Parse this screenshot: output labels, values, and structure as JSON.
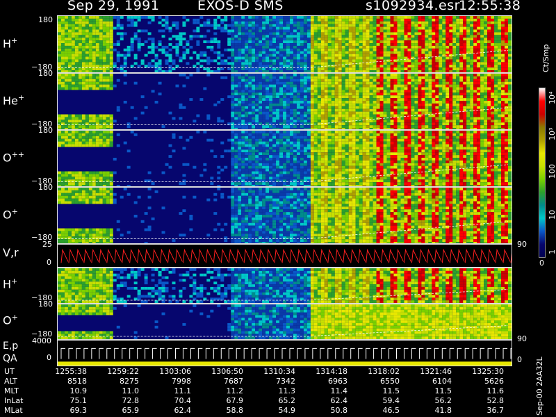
{
  "header": {
    "date": "Sep 29, 1991",
    "instrument": "EXOS-D SMS",
    "file": "s1092934.esr",
    "time": "12:55:38"
  },
  "panels": [
    {
      "id": "hplus",
      "species": "H",
      "charge": "+",
      "ymax": "180",
      "ymin": "−180"
    },
    {
      "id": "heplus",
      "species": "He",
      "charge": "+",
      "ymax": "180",
      "ymin": "−180"
    },
    {
      "id": "oplusplus",
      "species": "O",
      "charge": "++",
      "ymax": "180",
      "ymin": "−180"
    },
    {
      "id": "oplus",
      "species": "O",
      "charge": "+",
      "ymax": "180",
      "ymin": "−180"
    },
    {
      "id": "vr",
      "label": "V,r",
      "ymax": "25",
      "ymin": "0",
      "right": "90"
    },
    {
      "id": "hplus2",
      "species": "H",
      "charge": "+",
      "ymax": "180",
      "ymin": "−180"
    },
    {
      "id": "oplus2",
      "species": "O",
      "charge": "+",
      "ymax": "180",
      "ymin": "−180",
      "right": "90"
    },
    {
      "id": "ep",
      "label1": "E,p",
      "label2": "QA",
      "ymax": "4000",
      "ymin": "0",
      "right": "0"
    }
  ],
  "colorbar": {
    "units": "Ct/Smp",
    "labels": [
      "10⁴",
      "10³",
      "100",
      "10",
      "1",
      "0"
    ],
    "colors": [
      "#ffffff",
      "#ff0000",
      "#cc0000",
      "#8c7a00",
      "#b0a000",
      "#e8e800",
      "#c8e000",
      "#7ad000",
      "#2ca02c",
      "#008c8c",
      "#00c8c8",
      "#0a58c8",
      "#06066e",
      "#000050"
    ]
  },
  "ephemeris": {
    "UT": [
      "1255:38",
      "1259:22",
      "1303:06",
      "1306:50",
      "1310:34",
      "1314:18",
      "1318:02",
      "1321:46",
      "1325:30"
    ],
    "ALT": [
      "8518",
      "8275",
      "7998",
      "7687",
      "7342",
      "6963",
      "6550",
      "6104",
      "5626"
    ],
    "MLT": [
      "10.9",
      "11.0",
      "11.1",
      "11.2",
      "11.3",
      "11.4",
      "11.5",
      "11.5",
      "11.6"
    ],
    "InLat": [
      "75.1",
      "72.8",
      "70.4",
      "67.9",
      "65.2",
      "62.4",
      "59.4",
      "56.2",
      "52.8"
    ],
    "MLat": [
      "69.3",
      "65.9",
      "62.4",
      "58.8",
      "54.9",
      "50.8",
      "46.5",
      "41.8",
      "36.7"
    ]
  },
  "side_label": "Sep-00  2AA32L",
  "chart_data": {
    "type": "heatmap",
    "title": "Sep 29, 1991   EXOS-D SMS",
    "xlabel": "UT",
    "x": [
      "1255:38",
      "1259:22",
      "1303:06",
      "1306:50",
      "1310:34",
      "1314:18",
      "1318:02",
      "1321:46",
      "1325:30"
    ],
    "series": [
      {
        "name": "H+",
        "ylim": [
          -180,
          180
        ]
      },
      {
        "name": "He+",
        "ylim": [
          -180,
          180
        ]
      },
      {
        "name": "O++",
        "ylim": [
          -180,
          180
        ]
      },
      {
        "name": "O+",
        "ylim": [
          -180,
          180
        ]
      },
      {
        "name": "V,r",
        "ylim": [
          0,
          25
        ]
      },
      {
        "name": "H+",
        "ylim": [
          -180,
          180
        ]
      },
      {
        "name": "O+",
        "ylim": [
          -180,
          180
        ]
      },
      {
        "name": "E,p",
        "ylim": [
          0,
          4000
        ]
      }
    ],
    "color_scale": {
      "units": "Ct/Smp",
      "min": 0,
      "max": 10000,
      "log": true
    }
  }
}
